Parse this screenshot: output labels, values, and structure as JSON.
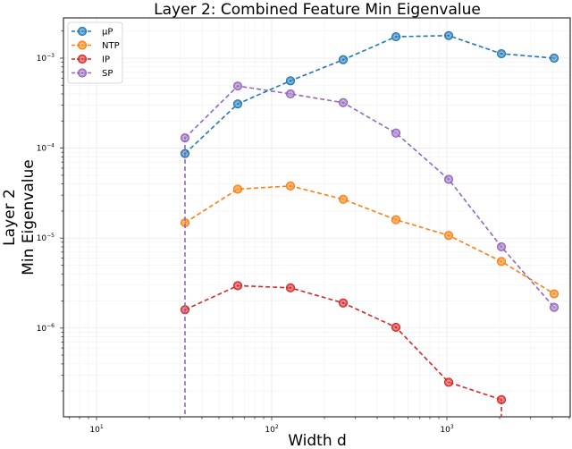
{
  "chart_data": {
    "type": "line",
    "title": "Layer 2: Combined Feature Min Eigenvalue",
    "xlabel": "Width d",
    "ylabel": [
      "Layer 2",
      "Min Eigenvalue"
    ],
    "xscale": "log",
    "yscale": "log",
    "xlim": [
      6.5,
      5000
    ],
    "ylim": [
      1.3e-07,
      0.0028
    ],
    "x_ticks": [
      {
        "base": "10",
        "exp": "1",
        "value": 10
      },
      {
        "base": "10",
        "exp": "2",
        "value": 100
      },
      {
        "base": "10",
        "exp": "3",
        "value": 1000
      }
    ],
    "y_ticks": [
      {
        "base": "10",
        "exp": "−3",
        "value": 0.001
      },
      {
        "base": "10",
        "exp": "−4",
        "value": 0.0001
      },
      {
        "base": "10",
        "exp": "−5",
        "value": 1e-05
      },
      {
        "base": "10",
        "exp": "−6",
        "value": 1e-06
      }
    ],
    "grid": true,
    "legend_position": "upper left",
    "x": [
      32,
      64,
      128,
      256,
      512,
      1024,
      2048,
      4096
    ],
    "series": [
      {
        "name": "μP",
        "color": "#1f77b4",
        "values": [
          8.7e-05,
          0.00031,
          0.00056,
          0.00096,
          0.00173,
          0.00178,
          0.00112,
          0.001
        ]
      },
      {
        "name": "NTP",
        "color": "#ff7f0e",
        "values": [
          1.48e-05,
          3.5e-05,
          3.8e-05,
          2.7e-05,
          1.6e-05,
          1.07e-05,
          5.5e-06,
          2.4e-06
        ]
      },
      {
        "name": "IP",
        "color": "#d62728",
        "values": [
          1.6e-06,
          2.96e-06,
          2.8e-06,
          1.9e-06,
          1.02e-06,
          2.5e-07,
          1.6e-07,
          null
        ],
        "drop_to_axis_after_index": 6
      },
      {
        "name": "SP",
        "color": "#9467bd",
        "values": [
          0.00013,
          0.00049,
          0.0004,
          0.00032,
          0.000147,
          4.5e-05,
          8e-06,
          1.7e-06
        ],
        "drop_to_axis_at_index": 0
      }
    ]
  }
}
